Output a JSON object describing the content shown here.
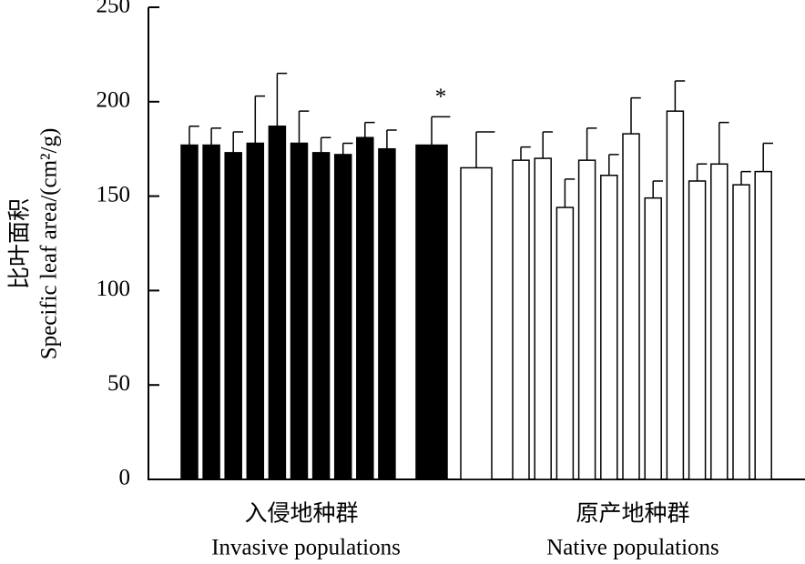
{
  "chart_data": {
    "type": "bar",
    "y_label_lines": [
      "比叶面积",
      "Specific leaf area/(cm²/g)"
    ],
    "groups": [
      {
        "label": "入侵地种群",
        "label_en": "Invasive populations"
      },
      {
        "label": "原产地种群",
        "label_en": "Native populations"
      }
    ],
    "categories": [
      null,
      null,
      null,
      null,
      null,
      null,
      null,
      null,
      null,
      null,
      null,
      null,
      null,
      null,
      null,
      null,
      null,
      null,
      null,
      null,
      null,
      null,
      null,
      null
    ],
    "values": [
      177,
      177,
      173,
      178,
      187,
      178,
      173,
      172,
      181,
      175,
      177,
      165,
      169,
      170,
      144,
      169,
      161,
      183,
      149,
      195,
      158,
      167,
      156,
      163
    ],
    "errors": [
      10,
      9,
      11,
      25,
      28,
      17,
      8,
      6,
      8,
      10,
      15,
      19,
      7,
      14,
      15,
      17,
      11,
      19,
      9,
      16,
      9,
      22,
      7,
      15
    ],
    "bar_colors": [
      "#000000",
      "#000000",
      "#000000",
      "#000000",
      "#000000",
      "#000000",
      "#000000",
      "#000000",
      "#000000",
      "#000000",
      "#000000",
      "#ffffff",
      "#ffffff",
      "#ffffff",
      "#ffffff",
      "#ffffff",
      "#ffffff",
      "#ffffff",
      "#ffffff",
      "#ffffff",
      "#ffffff",
      "#ffffff",
      "#ffffff",
      "#ffffff"
    ],
    "annotations": [
      {
        "text": "*",
        "index": 10
      }
    ],
    "ylim": [
      0,
      250
    ],
    "yticks": [
      0,
      50,
      100,
      150,
      200,
      250
    ]
  }
}
